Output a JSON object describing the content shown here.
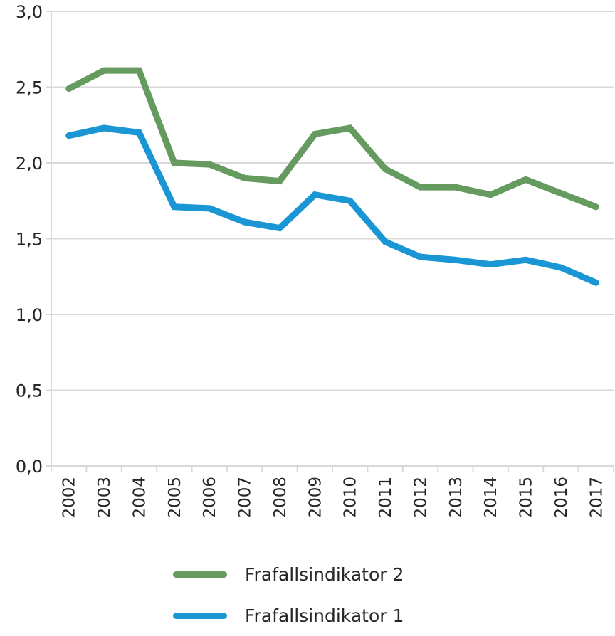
{
  "chart_data": {
    "type": "line",
    "title": "",
    "xlabel": "",
    "ylabel": "",
    "ylim": [
      0,
      3.0
    ],
    "yticks": [
      "0,0",
      "0,5",
      "1,0",
      "1,5",
      "2,0",
      "2,5",
      "3,0"
    ],
    "ytick_values": [
      0,
      0.5,
      1.0,
      1.5,
      2.0,
      2.5,
      3.0
    ],
    "grid": true,
    "legend_position": "bottom",
    "categories": [
      "2002",
      "2003",
      "2004",
      "2005",
      "2006",
      "2007",
      "2008",
      "2009",
      "2010",
      "2011",
      "2012",
      "2013",
      "2014",
      "2015",
      "2016",
      "2017"
    ],
    "series": [
      {
        "name": "Frafallsindikator 2",
        "color": "#659B5E",
        "values": [
          2.49,
          2.61,
          2.61,
          2.0,
          1.99,
          1.9,
          1.88,
          2.19,
          2.23,
          1.96,
          1.84,
          1.84,
          1.79,
          1.89,
          1.8,
          1.71
        ]
      },
      {
        "name": "Frafallsindikator 1",
        "color": "#1A96D4",
        "values": [
          2.18,
          2.23,
          2.2,
          1.71,
          1.7,
          1.61,
          1.57,
          1.79,
          1.75,
          1.48,
          1.38,
          1.36,
          1.33,
          1.36,
          1.31,
          1.21
        ]
      }
    ]
  },
  "legend": {
    "items": [
      {
        "label": "Frafallsindikator 2",
        "color": "#659B5E"
      },
      {
        "label": "Frafallsindikator 1",
        "color": "#1A96D4"
      }
    ]
  }
}
